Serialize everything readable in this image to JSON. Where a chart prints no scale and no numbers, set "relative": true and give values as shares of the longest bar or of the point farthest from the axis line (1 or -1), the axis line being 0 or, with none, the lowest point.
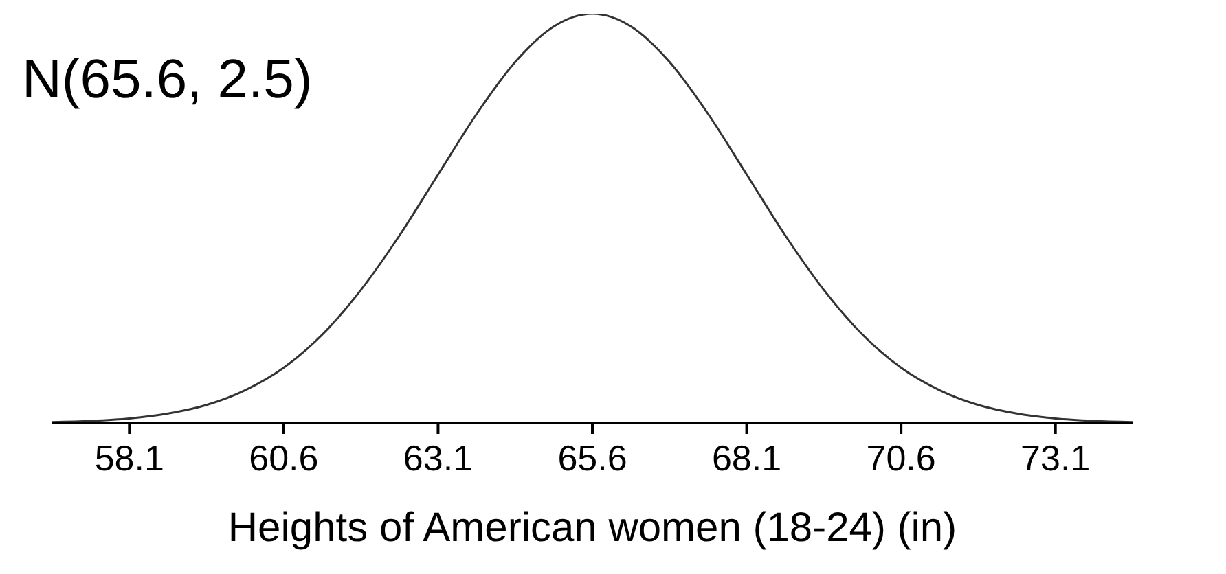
{
  "chart_data": {
    "type": "line",
    "title": "N(65.6, 2.5)",
    "xlabel": "Heights of American women (18-24) (in)",
    "relative": true,
    "x": [
      56.85,
      57.475,
      58.1,
      58.725,
      59.35,
      59.975,
      60.6,
      61.225,
      61.85,
      62.475,
      63.1,
      63.725,
      64.35,
      64.975,
      65.6,
      66.225,
      66.85,
      67.475,
      68.1,
      68.725,
      69.35,
      69.975,
      70.6,
      71.225,
      71.85,
      72.475,
      73.1,
      73.725,
      74.35
    ],
    "series": [
      {
        "color": "#333333",
        "values": [
          0.002,
          0.005,
          0.011,
          0.023,
          0.044,
          0.08,
          0.135,
          0.216,
          0.325,
          0.458,
          0.607,
          0.755,
          0.882,
          0.969,
          1,
          0.969,
          0.882,
          0.755,
          0.607,
          0.458,
          0.325,
          0.216,
          0.135,
          0.08,
          0.044,
          0.023,
          0.011,
          0.005,
          0.002
        ]
      }
    ],
    "xlim": [
      56.85,
      74.35
    ],
    "xticks": [
      58.1,
      60.6,
      63.1,
      65.6,
      68.1,
      70.6,
      73.1
    ],
    "tick_labels": "x",
    "marker": "none",
    "line_style": "solid",
    "grid": false,
    "legend": false
  }
}
